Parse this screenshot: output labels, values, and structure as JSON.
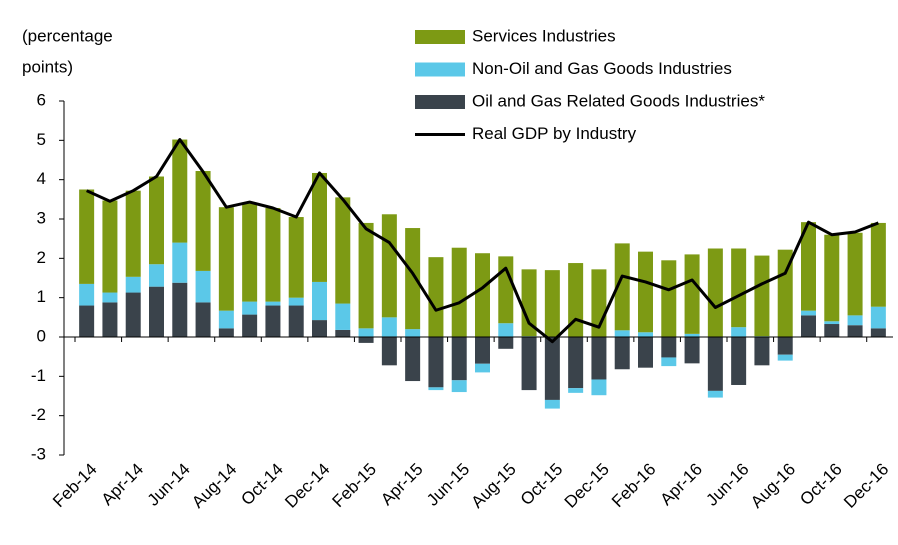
{
  "chart_data": {
    "type": "bar",
    "ylabel_lines": [
      "(percentage",
      "points)"
    ],
    "categories": [
      "Feb-14",
      null,
      "Apr-14",
      null,
      "Jun-14",
      null,
      "Aug-14",
      null,
      "Oct-14",
      null,
      "Dec-14",
      null,
      "Feb-15",
      null,
      "Apr-15",
      null,
      "Jun-15",
      null,
      "Aug-15",
      null,
      "Oct-15",
      null,
      "Dec-15",
      null,
      "Feb-16",
      null,
      "Apr-16",
      null,
      "Jun-16",
      null,
      "Aug-16",
      null,
      "Oct-16",
      null,
      "Dec-16"
    ],
    "series": [
      {
        "name": "Services Industries",
        "color": "#7d9a14",
        "type": "bar",
        "values": [
          2.4,
          2.34,
          2.19,
          2.23,
          2.62,
          2.54,
          2.63,
          2.52,
          2.38,
          2.05,
          2.77,
          2.7,
          2.68,
          2.62,
          2.57,
          2.03,
          2.27,
          2.13,
          1.7,
          1.7,
          1.7,
          1.88,
          1.72,
          2.21,
          2.05,
          1.95,
          2.02,
          2.25,
          2.0,
          2.05,
          2.22,
          2.25,
          2.2,
          2.1,
          2.13
        ]
      },
      {
        "name": "Non-Oil and Gas Goods Industries",
        "color": "#5bc8e8",
        "type": "bar",
        "values": [
          0.55,
          0.25,
          0.4,
          0.57,
          1.02,
          0.8,
          0.45,
          0.33,
          0.1,
          0.2,
          0.97,
          0.67,
          0.22,
          0.5,
          0.2,
          -0.07,
          -0.3,
          -0.22,
          0.35,
          0.02,
          -0.22,
          -0.12,
          -0.4,
          0.17,
          0.12,
          -0.22,
          0.08,
          -0.17,
          0.25,
          0.02,
          -0.15,
          0.12,
          0.07,
          0.25,
          0.55
        ]
      },
      {
        "name": "Oil and Gas Related Goods Industries*",
        "color": "#3a434b",
        "type": "bar",
        "values": [
          0.8,
          0.88,
          1.13,
          1.28,
          1.38,
          0.88,
          0.22,
          0.57,
          0.8,
          0.8,
          0.43,
          0.18,
          -0.15,
          -0.72,
          -1.12,
          -1.28,
          -1.1,
          -0.68,
          -0.3,
          -1.35,
          -1.6,
          -1.3,
          -1.08,
          -0.82,
          -0.78,
          -0.52,
          -0.67,
          -1.37,
          -1.22,
          -0.72,
          -0.45,
          0.55,
          0.33,
          0.3,
          0.22
        ]
      },
      {
        "name": "Real GDP by Industry",
        "color": "#000000",
        "type": "line",
        "values": [
          3.72,
          3.45,
          3.72,
          4.08,
          5.02,
          4.2,
          3.3,
          3.43,
          3.28,
          3.05,
          4.17,
          3.5,
          2.75,
          2.4,
          1.62,
          0.68,
          0.87,
          1.25,
          1.75,
          0.35,
          -0.12,
          0.45,
          0.25,
          1.55,
          1.4,
          1.2,
          1.45,
          0.75,
          1.05,
          1.35,
          1.62,
          2.92,
          2.6,
          2.67,
          2.9
        ]
      }
    ],
    "ylim": [
      -3,
      6
    ],
    "yticks": [
      -3,
      -2,
      -1,
      0,
      1,
      2,
      3,
      4,
      5,
      6
    ],
    "stacked": true
  }
}
